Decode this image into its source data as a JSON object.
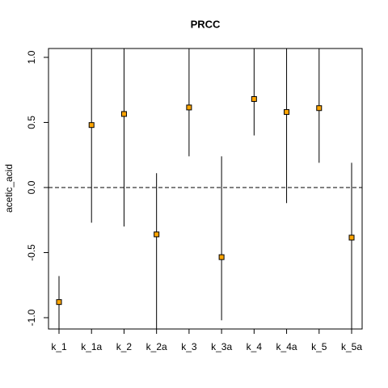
{
  "chart_data": {
    "type": "errorbar",
    "title": "PRCC",
    "ylabel": "acetic_acid",
    "categories": [
      "k_1",
      "k_1a",
      "k_2",
      "k_2a",
      "k_3",
      "k_3a",
      "k_4",
      "k_4a",
      "k_5",
      "k_5a"
    ],
    "values": [
      -0.88,
      0.48,
      0.565,
      -0.36,
      0.615,
      -0.535,
      0.68,
      0.58,
      0.61,
      -0.385
    ],
    "lower": [
      -1.1,
      -0.27,
      -0.3,
      -1.1,
      0.24,
      -1.02,
      0.4,
      -0.12,
      0.19,
      -1.1
    ],
    "upper": [
      -0.68,
      1.1,
      1.1,
      0.11,
      1.1,
      0.24,
      1.1,
      1.1,
      1.1,
      0.19
    ],
    "color": "#ffa500",
    "reference_line": 0,
    "ylim": [
      -1.087,
      1.068
    ],
    "yticks": [
      {
        "value": -1,
        "label": "-1.0"
      },
      -0.5,
      {
        "value": 0,
        "label": "0.0"
      },
      0.5,
      {
        "value": 1,
        "label": "1.0"
      }
    ]
  }
}
